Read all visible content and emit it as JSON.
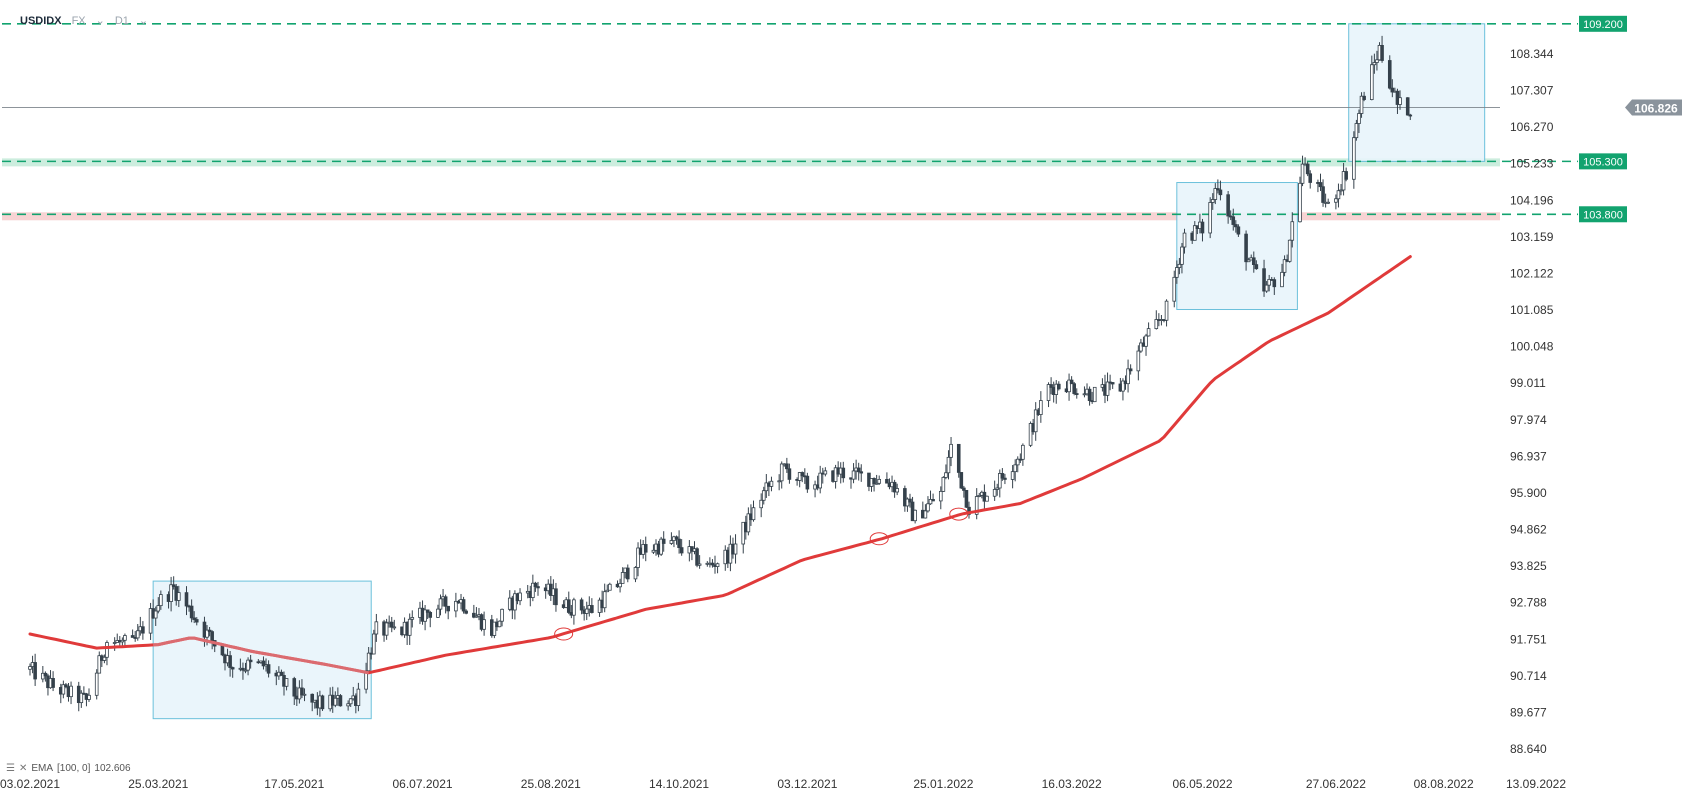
{
  "header": {
    "symbol": "USDIDX",
    "market": "FX",
    "timeframe": "D1"
  },
  "indicator": {
    "label": "EMA",
    "params": "[100, 0]",
    "value": "102.606"
  },
  "current_price": "106.826",
  "levels": [
    {
      "value": 109.2,
      "label": "109.200"
    },
    {
      "value": 105.3,
      "label": "105.300"
    },
    {
      "value": 103.8,
      "label": "103.800"
    }
  ],
  "colors": {
    "up": "#ffffff",
    "down": "#35414b",
    "wick": "#35414b",
    "ema": "#e03a3a",
    "level": "#12a36f",
    "box": "#5bbad8",
    "price_tag": "#8a939c"
  },
  "chart_data": {
    "type": "candlestick",
    "ylim": [
      88.64,
      109.6
    ],
    "y_ticks": [
      "108.344",
      "107.307",
      "106.270",
      "105.233",
      "104.196",
      "103.159",
      "102.122",
      "101.085",
      "100.048",
      "99.011",
      "97.974",
      "96.937",
      "95.900",
      "94.862",
      "93.825",
      "92.788",
      "91.751",
      "90.714",
      "89.677",
      "88.640"
    ],
    "x_ticks": [
      "03.02.2021",
      "25.03.2021",
      "17.05.2021",
      "06.07.2021",
      "25.08.2021",
      "14.10.2021",
      "03.12.2021",
      "25.01.2022",
      "16.03.2022",
      "06.05.2022",
      "27.06.2022",
      "08.08.2022",
      "13.09.2022"
    ],
    "price_anchors": [
      [
        "2021-02-03",
        90.9
      ],
      [
        "2021-02-12",
        90.4
      ],
      [
        "2021-02-25",
        90.0
      ],
      [
        "2021-03-05",
        91.7
      ],
      [
        "2021-03-15",
        91.6
      ],
      [
        "2021-03-25",
        92.8
      ],
      [
        "2021-03-31",
        93.2
      ],
      [
        "2021-04-12",
        92.0
      ],
      [
        "2021-04-23",
        91.0
      ],
      [
        "2021-05-05",
        91.0
      ],
      [
        "2021-05-17",
        90.2
      ],
      [
        "2021-05-25",
        89.9
      ],
      [
        "2021-06-04",
        90.0
      ],
      [
        "2021-06-10",
        90.1
      ],
      [
        "2021-06-18",
        92.0
      ],
      [
        "2021-06-28",
        92.0
      ],
      [
        "2021-07-07",
        92.5
      ],
      [
        "2021-07-20",
        92.9
      ],
      [
        "2021-08-02",
        92.0
      ],
      [
        "2021-08-11",
        92.9
      ],
      [
        "2021-08-20",
        93.3
      ],
      [
        "2021-08-31",
        92.7
      ],
      [
        "2021-09-10",
        92.6
      ],
      [
        "2021-09-20",
        93.3
      ],
      [
        "2021-09-30",
        94.3
      ],
      [
        "2021-10-12",
        94.5
      ],
      [
        "2021-10-25",
        93.8
      ],
      [
        "2021-11-03",
        94.2
      ],
      [
        "2021-11-16",
        95.9
      ],
      [
        "2021-11-24",
        96.6
      ],
      [
        "2021-12-03",
        96.1
      ],
      [
        "2021-12-15",
        96.5
      ],
      [
        "2022-01-05",
        96.2
      ],
      [
        "2022-01-14",
        95.2
      ],
      [
        "2022-01-24",
        95.9
      ],
      [
        "2022-01-28",
        97.2
      ],
      [
        "2022-02-04",
        95.5
      ],
      [
        "2022-02-14",
        96.1
      ],
      [
        "2022-02-24",
        97.0
      ],
      [
        "2022-03-07",
        98.9
      ],
      [
        "2022-03-14",
        99.0
      ],
      [
        "2022-03-24",
        98.7
      ],
      [
        "2022-04-04",
        98.9
      ],
      [
        "2022-04-12",
        100.0
      ],
      [
        "2022-04-22",
        101.1
      ],
      [
        "2022-04-29",
        103.2
      ],
      [
        "2022-05-06",
        103.4
      ],
      [
        "2022-05-12",
        104.7
      ],
      [
        "2022-05-20",
        103.1
      ],
      [
        "2022-05-30",
        101.6
      ],
      [
        "2022-06-07",
        102.3
      ],
      [
        "2022-06-14",
        105.2
      ],
      [
        "2022-06-24",
        104.0
      ],
      [
        "2022-07-01",
        105.0
      ],
      [
        "2022-07-07",
        107.0
      ],
      [
        "2022-07-14",
        108.5
      ],
      [
        "2022-07-21",
        106.9
      ],
      [
        "2022-07-26",
        106.8
      ]
    ],
    "ema_anchors": [
      [
        "2021-02-03",
        91.9
      ],
      [
        "2021-03-01",
        91.5
      ],
      [
        "2021-03-25",
        91.6
      ],
      [
        "2021-04-07",
        91.8
      ],
      [
        "2021-05-01",
        91.4
      ],
      [
        "2021-06-01",
        91.0
      ],
      [
        "2021-06-15",
        90.8
      ],
      [
        "2021-07-15",
        91.3
      ],
      [
        "2021-08-25",
        91.8
      ],
      [
        "2021-10-01",
        92.6
      ],
      [
        "2021-11-01",
        93.0
      ],
      [
        "2021-12-01",
        94.0
      ],
      [
        "2022-01-01",
        94.6
      ],
      [
        "2022-02-01",
        95.3
      ],
      [
        "2022-02-24",
        95.6
      ],
      [
        "2022-03-20",
        96.3
      ],
      [
        "2022-04-20",
        97.4
      ],
      [
        "2022-05-10",
        99.1
      ],
      [
        "2022-06-01",
        100.2
      ],
      [
        "2022-06-24",
        101.0
      ],
      [
        "2022-07-26",
        102.6
      ]
    ],
    "ema_name": "EMA"
  }
}
